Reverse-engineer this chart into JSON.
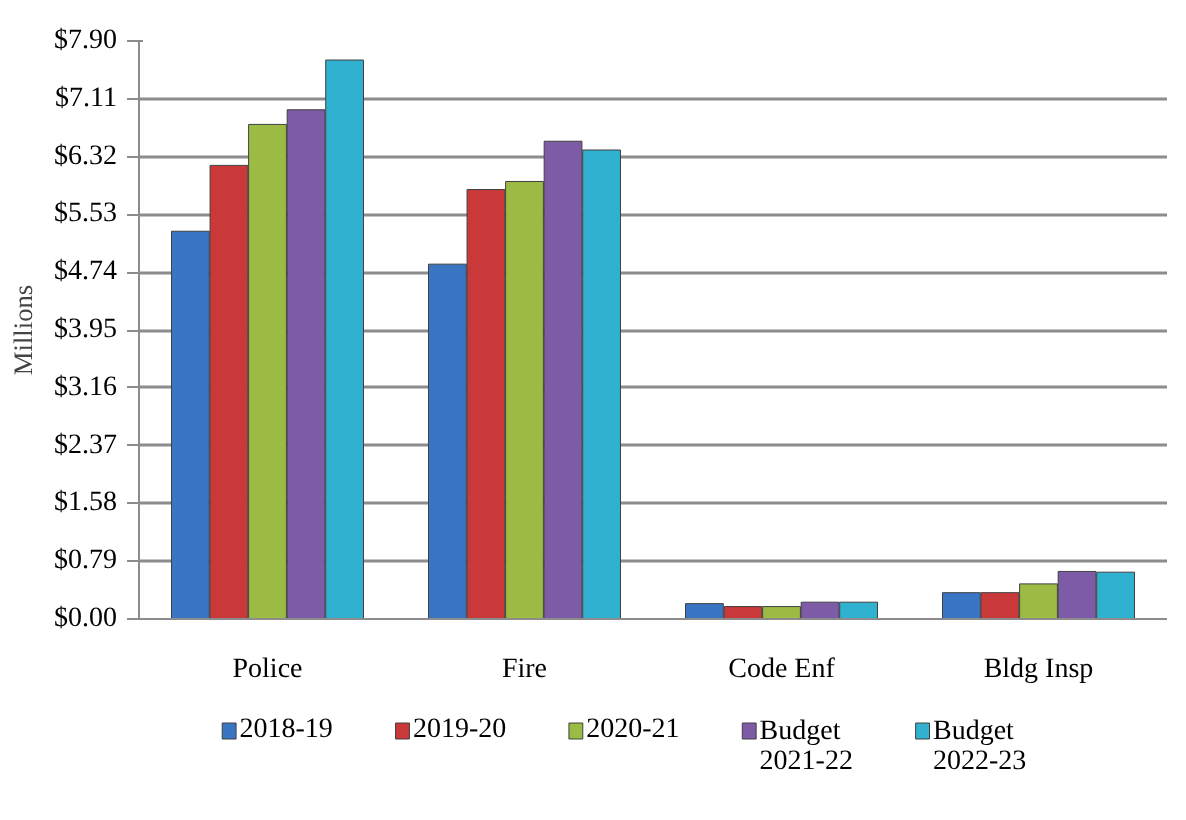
{
  "chart_data": {
    "type": "bar",
    "ylabel": "Millions",
    "categories": [
      "Police",
      "Fire",
      "Code Enf",
      "Bldg Insp"
    ],
    "series": [
      {
        "name": "2018-19",
        "color": "#3a75c4",
        "values": [
          5.3,
          4.85,
          0.21,
          0.36
        ]
      },
      {
        "name": "2019-20",
        "color": "#c9393a",
        "values": [
          6.2,
          5.87,
          0.17,
          0.36
        ]
      },
      {
        "name": "2020-21",
        "color": "#9bbb45",
        "values": [
          6.76,
          5.98,
          0.17,
          0.48
        ]
      },
      {
        "name": "Budget\n2021-22",
        "color": "#7d5ba6",
        "values": [
          6.96,
          6.53,
          0.23,
          0.65
        ]
      },
      {
        "name": "Budget\n2022-23",
        "color": "#2fb1cf",
        "values": [
          7.64,
          6.41,
          0.23,
          0.64
        ]
      }
    ],
    "ylim": [
      0,
      7.9
    ],
    "yticks": [
      {
        "value": 0,
        "label": "$0.00"
      },
      {
        "value": 0.79,
        "label": "$0.79"
      },
      {
        "value": 1.58,
        "label": "$1.58"
      },
      {
        "value": 2.37,
        "label": "$2.37"
      },
      {
        "value": 3.16,
        "label": "$3.16"
      },
      {
        "value": 3.95,
        "label": "$3.95"
      },
      {
        "value": 4.74,
        "label": "$4.74"
      },
      {
        "value": 5.53,
        "label": "$5.53"
      },
      {
        "value": 6.32,
        "label": "$6.32"
      },
      {
        "value": 7.11,
        "label": "$7.11"
      },
      {
        "value": 7.9,
        "label": "$7.90"
      }
    ],
    "grid": "y",
    "legend": "bottom"
  }
}
